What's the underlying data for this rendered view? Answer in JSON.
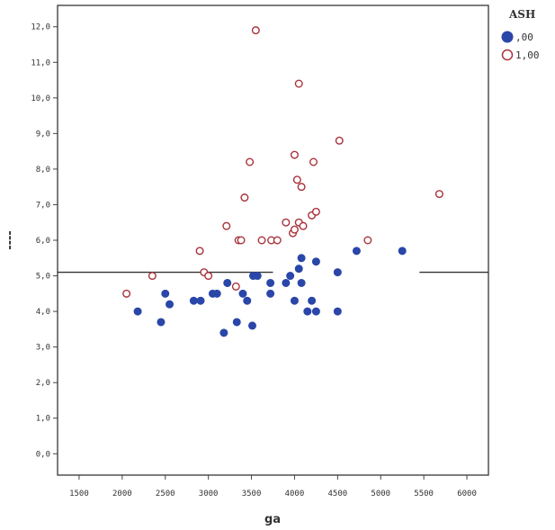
{
  "chart_data": {
    "type": "scatter",
    "title": "",
    "xlabel": "ga",
    "ylabel": "----",
    "xlim": [
      1250,
      6250
    ],
    "ylim": [
      -0.6,
      12.6
    ],
    "x_ticks": [
      1500,
      2000,
      2500,
      3000,
      3500,
      4000,
      4500,
      5000,
      5500,
      6000
    ],
    "y_ticks": [
      0,
      1,
      2,
      3,
      4,
      5,
      6,
      7,
      8,
      9,
      10,
      11,
      12
    ],
    "x_tick_labels": [
      "1500",
      "2000",
      "2500",
      "3000",
      "3500",
      "4000",
      "4500",
      "5000",
      "5500",
      "6000"
    ],
    "y_tick_labels": [
      "0,0",
      "1,0",
      "2,0",
      "3,0",
      "4,0",
      "5,0",
      "6,0",
      "7,0",
      "8,0",
      "9,0",
      "10,0",
      "11,0",
      "12,0"
    ],
    "reference_line": {
      "y": 5.1,
      "gap_from_x": 3750,
      "gap_to_x": 5450
    },
    "grid": false,
    "legend": {
      "title": "ASH",
      "position": "top-right"
    },
    "series": [
      {
        "name": ",00",
        "marker": "filled",
        "color": "#2a46a8",
        "points": [
          [
            2180,
            4.0
          ],
          [
            2450,
            3.7
          ],
          [
            2500,
            4.5
          ],
          [
            2550,
            4.2
          ],
          [
            2830,
            4.3
          ],
          [
            2910,
            4.3
          ],
          [
            3050,
            4.5
          ],
          [
            3100,
            4.5
          ],
          [
            3180,
            3.4
          ],
          [
            3220,
            4.8
          ],
          [
            3330,
            3.7
          ],
          [
            3400,
            4.5
          ],
          [
            3450,
            4.3
          ],
          [
            3510,
            3.6
          ],
          [
            3520,
            5.0
          ],
          [
            3570,
            5.0
          ],
          [
            3720,
            4.8
          ],
          [
            3720,
            4.5
          ],
          [
            3900,
            4.8
          ],
          [
            3950,
            5.0
          ],
          [
            4000,
            4.3
          ],
          [
            4050,
            5.2
          ],
          [
            4080,
            4.8
          ],
          [
            4080,
            5.5
          ],
          [
            4150,
            4.0
          ],
          [
            4200,
            4.3
          ],
          [
            4250,
            4.0
          ],
          [
            4250,
            5.4
          ],
          [
            4500,
            4.0
          ],
          [
            4500,
            5.1
          ],
          [
            4720,
            5.7
          ],
          [
            5250,
            5.7
          ]
        ]
      },
      {
        "name": "1,00",
        "marker": "open",
        "color": "#a8323a",
        "points": [
          [
            2050,
            4.5
          ],
          [
            2350,
            5.0
          ],
          [
            2900,
            5.7
          ],
          [
            2950,
            5.1
          ],
          [
            3000,
            5.0
          ],
          [
            3210,
            6.4
          ],
          [
            3320,
            4.7
          ],
          [
            3350,
            6.0
          ],
          [
            3380,
            6.0
          ],
          [
            3420,
            7.2
          ],
          [
            3480,
            8.2
          ],
          [
            3550,
            11.9
          ],
          [
            3620,
            6.0
          ],
          [
            3730,
            6.0
          ],
          [
            3800,
            6.0
          ],
          [
            3900,
            6.5
          ],
          [
            3980,
            6.2
          ],
          [
            4000,
            6.3
          ],
          [
            4000,
            8.4
          ],
          [
            4030,
            7.7
          ],
          [
            4050,
            6.5
          ],
          [
            4050,
            10.4
          ],
          [
            4080,
            7.5
          ],
          [
            4100,
            6.4
          ],
          [
            4200,
            6.7
          ],
          [
            4220,
            8.2
          ],
          [
            4250,
            6.8
          ],
          [
            4520,
            8.8
          ],
          [
            4850,
            6.0
          ],
          [
            5680,
            7.3
          ]
        ]
      }
    ]
  }
}
